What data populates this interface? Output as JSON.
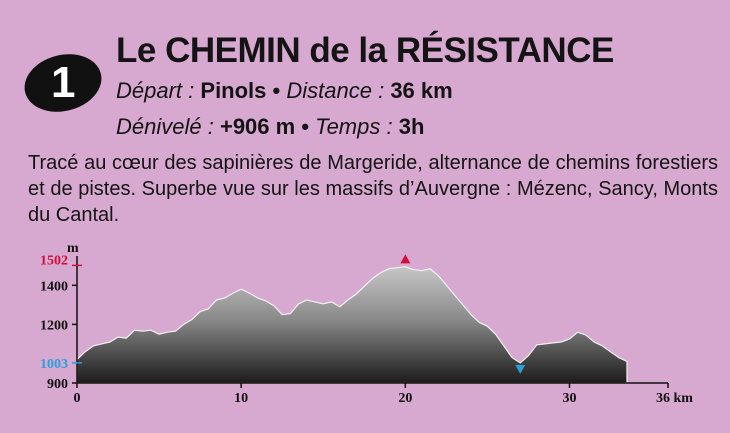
{
  "route": {
    "number": "1",
    "title": "Le CHEMIN de la RÉSISTANCE",
    "depart_label": "Départ :",
    "depart_value": "Pinols",
    "sep": "•",
    "distance_label": "Distance :",
    "distance_value": "36 km",
    "denivele_label": "Dénivelé :",
    "denivele_value": "+906 m",
    "temps_label": "Temps :",
    "temps_value": "3h",
    "description": "Tracé au cœur des sapinières de Margeride, alternance de chemins forestiers et de pistes. Superbe vue sur les massifs  d’Auvergne : Mézenc, Sancy, Monts du Cantal."
  },
  "chart_data": {
    "type": "area",
    "ylabel": "m",
    "xlabel": "km",
    "xlim": [
      0,
      36
    ],
    "ylim": [
      900,
      1550
    ],
    "x_ticks": [
      0,
      10,
      20,
      30,
      36
    ],
    "x_tick_labels": [
      "0",
      "10",
      "20",
      "30",
      "36 km"
    ],
    "y_ticks": [
      900,
      1200,
      1400
    ],
    "y_tick_labels": [
      "900",
      "1200",
      "1400"
    ],
    "max_label": "1502",
    "min_label": "1003",
    "max_point": {
      "x": 20,
      "y": 1502
    },
    "min_point": {
      "x": 27,
      "y": 1003
    },
    "colors": {
      "max": "#d0103a",
      "min": "#2a9fd8",
      "fill_dark": "#1c1c1c",
      "fill_light": "#bdbdbd"
    },
    "series": [
      {
        "x": [
          0,
          0.5,
          1,
          1.5,
          2,
          2.5,
          3,
          3.5,
          4,
          4.5,
          5,
          5.5,
          6,
          6.5,
          7,
          7.5,
          8,
          8.5,
          9,
          9.5,
          10,
          10.5,
          11,
          11.5,
          12,
          12.5,
          13,
          13.5,
          14,
          14.5,
          15,
          15.5,
          16,
          16.5,
          17,
          17.5,
          18,
          18.5,
          19,
          19.5,
          20,
          20.5,
          21,
          21.5,
          22,
          22.5,
          23,
          23.5,
          24,
          24.5,
          25,
          25.5,
          26,
          26.5,
          27,
          27.5,
          28,
          28.5,
          29,
          29.5,
          30,
          30.5,
          31,
          31.5,
          32,
          32.5,
          33,
          33.5
        ],
        "values": [
          1020,
          1060,
          1090,
          1100,
          1110,
          1135,
          1130,
          1170,
          1165,
          1170,
          1150,
          1160,
          1165,
          1200,
          1225,
          1265,
          1280,
          1325,
          1335,
          1360,
          1380,
          1360,
          1335,
          1320,
          1295,
          1250,
          1255,
          1305,
          1325,
          1315,
          1305,
          1315,
          1290,
          1325,
          1355,
          1395,
          1435,
          1465,
          1485,
          1490,
          1495,
          1480,
          1475,
          1485,
          1450,
          1400,
          1350,
          1300,
          1250,
          1210,
          1190,
          1150,
          1090,
          1030,
          1003,
          1040,
          1095,
          1100,
          1105,
          1110,
          1125,
          1160,
          1145,
          1110,
          1090,
          1060,
          1030,
          1010
        ]
      }
    ]
  }
}
